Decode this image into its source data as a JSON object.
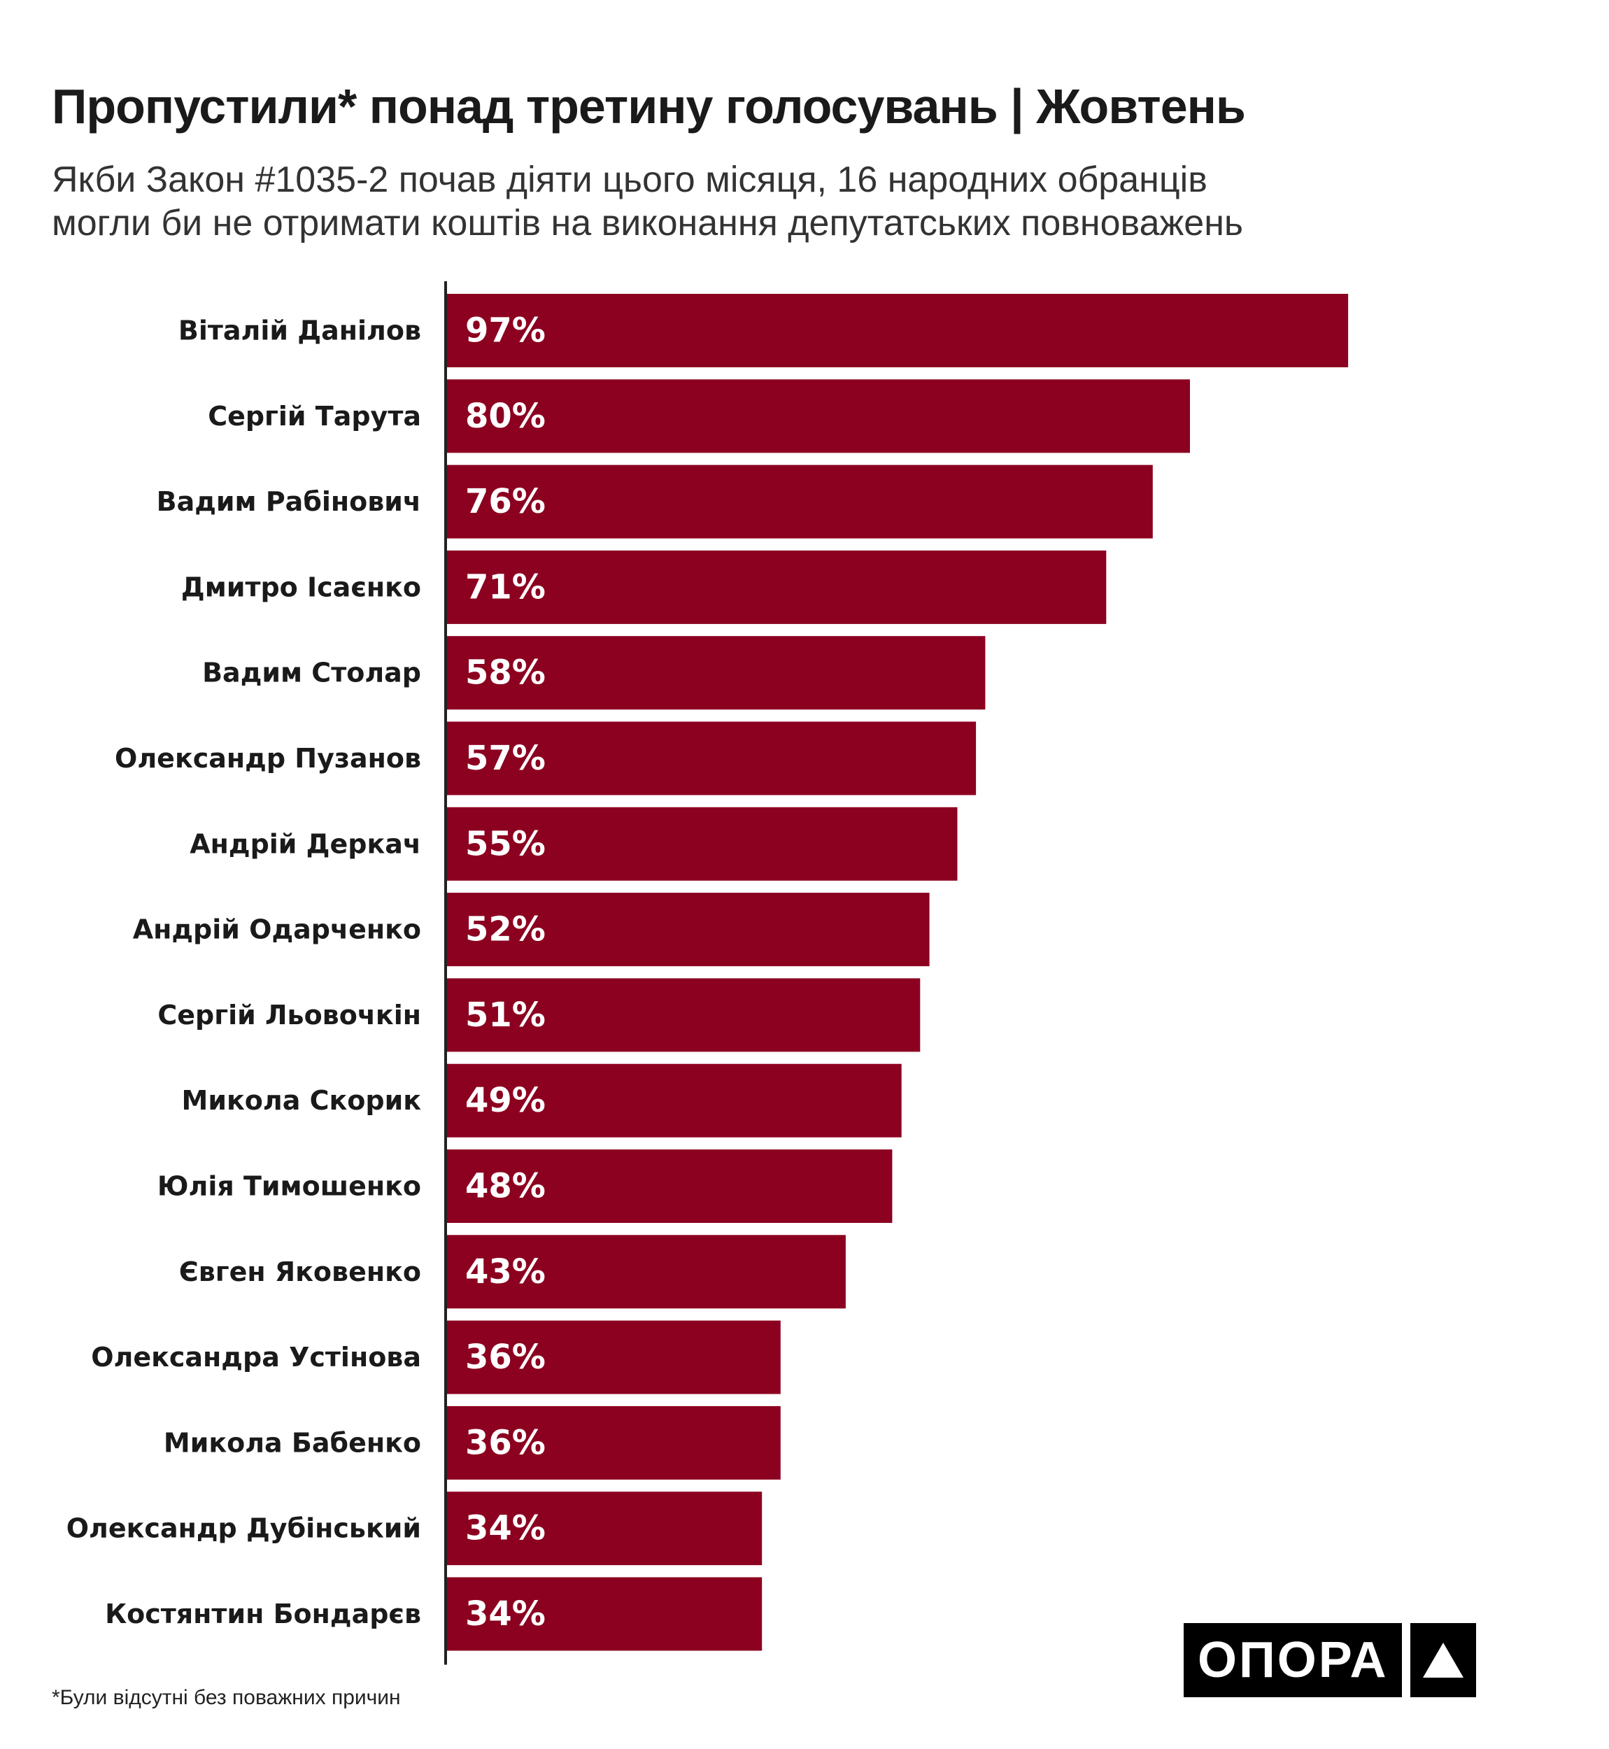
{
  "title": "Пропустили* понад третину голосувань | Жовтень",
  "subtitle": "Якби Закон #1035-2 почав діяти цього місяця, 16 народних обранців\nмогли би не отримати коштів на виконання депутатських повноважень",
  "footnote": "*Були відсутні без поважних причин",
  "logo": {
    "text": "ОПОРА",
    "icon": "triangle-icon"
  },
  "colors": {
    "bar": "#8c0020",
    "bar_label": "#ffffff",
    "axis": "#222222",
    "text": "#1a1a1a"
  },
  "chart_data": {
    "type": "bar",
    "orientation": "horizontal",
    "categories": [
      "Віталій Данілов",
      "Сергій Тарута",
      "Вадим Рабінович",
      "Дмитро Ісаєнко",
      "Вадим Столар",
      "Олександр Пузанов",
      "Андрій Деркач",
      "Андрій Одарченко",
      "Сергій Льовочкін",
      "Микола Скорик",
      "Юлія Тимошенко",
      "Євген Яковенко",
      "Олександра Устінова",
      "Микола Бабенко",
      "Олександр Дубінський",
      "Костянтин Бондарєв"
    ],
    "values": [
      97,
      80,
      76,
      71,
      58,
      57,
      55,
      52,
      51,
      49,
      48,
      43,
      36,
      36,
      34,
      34
    ],
    "value_labels": [
      "97%",
      "80%",
      "76%",
      "71%",
      "58%",
      "57%",
      "55%",
      "52%",
      "51%",
      "49%",
      "48%",
      "43%",
      "36%",
      "36%",
      "34%",
      "34%"
    ],
    "unit": "%",
    "xlim": [
      0,
      100
    ],
    "grid": false,
    "legend": "none"
  }
}
